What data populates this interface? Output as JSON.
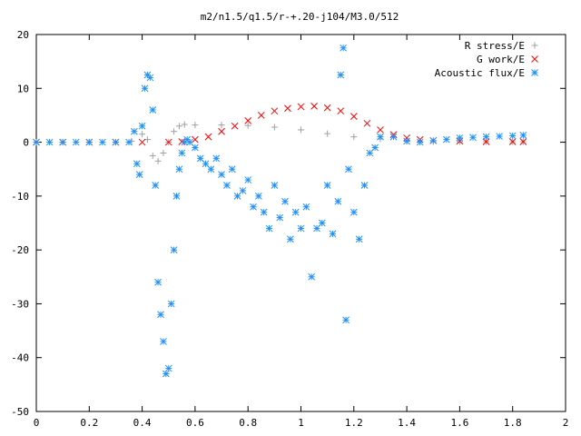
{
  "chart_data": {
    "type": "scatter",
    "title": "m2/n1.5/q1.5/r-+.20-j104/M3.0/512",
    "xlabel": "",
    "ylabel": "",
    "xlim": [
      0,
      2
    ],
    "ylim": [
      -50,
      20
    ],
    "xticks": [
      "0",
      "0.2",
      "0.4",
      "0.6",
      "0.8",
      "1",
      "1.2",
      "1.4",
      "1.6",
      "1.8",
      "2"
    ],
    "yticks": [
      "20",
      "10",
      "0",
      "-10",
      "-20",
      "-30",
      "-40",
      "-50"
    ],
    "grid": false,
    "legend_position": "top-right",
    "series": [
      {
        "name": "R stress/E",
        "marker": "plus",
        "color": "#a0a0a0",
        "x": [
          0,
          0.1,
          0.2,
          0.3,
          0.36,
          0.4,
          0.42,
          0.44,
          0.46,
          0.48,
          0.5,
          0.52,
          0.54,
          0.56,
          0.6,
          0.7,
          0.8,
          0.9,
          1.0,
          1.1,
          1.2,
          1.3,
          1.4,
          1.5,
          1.6,
          1.7,
          1.8,
          1.84
        ],
        "y": [
          0,
          0,
          0,
          0,
          0.2,
          1.5,
          0.5,
          -2.5,
          -3.5,
          -2,
          0,
          2,
          3,
          3.3,
          3.2,
          3.2,
          3.1,
          2.8,
          2.3,
          1.6,
          1.0,
          0.6,
          0.2,
          0.1,
          0.1,
          0.1,
          0.1,
          0.1
        ]
      },
      {
        "name": "G work/E",
        "marker": "cross",
        "color": "#ff0000",
        "x": [
          0,
          0.1,
          0.2,
          0.3,
          0.4,
          0.5,
          0.55,
          0.6,
          0.65,
          0.7,
          0.75,
          0.8,
          0.85,
          0.9,
          0.95,
          1.0,
          1.05,
          1.1,
          1.15,
          1.2,
          1.25,
          1.3,
          1.35,
          1.4,
          1.45,
          1.5,
          1.6,
          1.7,
          1.8,
          1.84
        ],
        "y": [
          0,
          0,
          0,
          0,
          0,
          0,
          0.1,
          0.5,
          1.0,
          2.0,
          3.0,
          4.0,
          5.0,
          5.8,
          6.3,
          6.6,
          6.7,
          6.4,
          5.8,
          4.8,
          3.5,
          2.3,
          1.4,
          0.8,
          0.5,
          0.3,
          0.2,
          0.1,
          0.1,
          0.1
        ]
      },
      {
        "name": "Acoustic flux/E",
        "marker": "star",
        "color": "#1e90ff",
        "x": [
          0,
          0.05,
          0.1,
          0.15,
          0.2,
          0.25,
          0.3,
          0.35,
          0.37,
          0.38,
          0.39,
          0.4,
          0.41,
          0.42,
          0.43,
          0.44,
          0.45,
          0.46,
          0.47,
          0.48,
          0.49,
          0.5,
          0.51,
          0.52,
          0.53,
          0.54,
          0.55,
          0.56,
          0.57,
          0.58,
          0.6,
          0.62,
          0.64,
          0.66,
          0.68,
          0.7,
          0.72,
          0.74,
          0.76,
          0.78,
          0.8,
          0.82,
          0.84,
          0.86,
          0.88,
          0.9,
          0.92,
          0.94,
          0.96,
          0.98,
          1.0,
          1.02,
          1.04,
          1.06,
          1.08,
          1.1,
          1.12,
          1.14,
          1.15,
          1.16,
          1.17,
          1.18,
          1.2,
          1.22,
          1.24,
          1.26,
          1.28,
          1.3,
          1.35,
          1.4,
          1.45,
          1.5,
          1.55,
          1.6,
          1.65,
          1.7,
          1.75,
          1.8,
          1.84
        ],
        "y": [
          0,
          0,
          0,
          0,
          0,
          0,
          0,
          0,
          2,
          -4,
          -6,
          3,
          10,
          12.5,
          12,
          6,
          -8,
          -26,
          -32,
          -37,
          -43,
          -42,
          -30,
          -20,
          -10,
          -5,
          -2,
          0,
          0.5,
          0,
          -1,
          -3,
          -4,
          -5,
          -3,
          -6,
          -8,
          -5,
          -10,
          -9,
          -7,
          -12,
          -10,
          -13,
          -16,
          -8,
          -14,
          -11,
          -18,
          -13,
          -16,
          -12,
          -25,
          -16,
          -15,
          -8,
          -17,
          -11,
          12.5,
          17.5,
          -33,
          -5,
          -13,
          -18,
          -8,
          -2,
          -1,
          1,
          1,
          0.2,
          0,
          0.3,
          0.5,
          0.8,
          0.9,
          1.0,
          1.1,
          1.2,
          1.3
        ]
      }
    ]
  }
}
